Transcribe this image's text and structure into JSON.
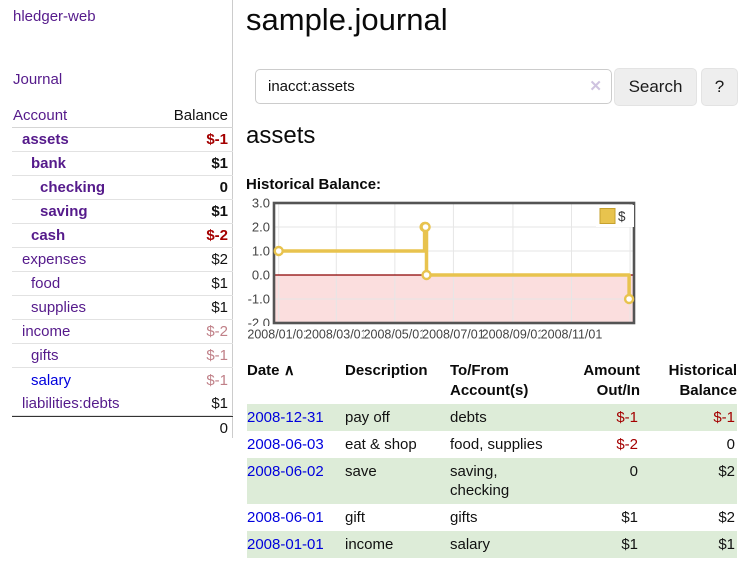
{
  "colors": {
    "link_purple": "#551a8b",
    "link_blue": "#0000dd",
    "negative_strong": "#a40000",
    "negative_muted": "#c08088",
    "row_green": "#ddecd8",
    "button_gray": "#eeeeee",
    "chart_line": "#e8c34e"
  },
  "sidebar": {
    "brand": "hledger-web",
    "nav": {
      "journal": "Journal"
    },
    "accounts": {
      "headers": {
        "account": "Account",
        "balance": "Balance"
      },
      "rows": [
        {
          "name": "assets",
          "indent": 1,
          "bold": true,
          "balance": "$-1",
          "neg": "strong"
        },
        {
          "name": "bank",
          "indent": 2,
          "bold": true,
          "balance": "$1",
          "neg": ""
        },
        {
          "name": "checking",
          "indent": 3,
          "bold": true,
          "balance": "0",
          "neg": ""
        },
        {
          "name": "saving",
          "indent": 3,
          "bold": true,
          "balance": "$1",
          "neg": ""
        },
        {
          "name": "cash",
          "indent": 2,
          "bold": true,
          "balance": "$-2",
          "neg": "strong"
        },
        {
          "name": "expenses",
          "indent": 1,
          "bold": false,
          "balance": "$2",
          "neg": ""
        },
        {
          "name": "food",
          "indent": 2,
          "bold": false,
          "balance": "$1",
          "neg": ""
        },
        {
          "name": "supplies",
          "indent": 2,
          "bold": false,
          "balance": "$1",
          "neg": ""
        },
        {
          "name": "income",
          "indent": 1,
          "bold": false,
          "balance": "$-2",
          "neg": "muted"
        },
        {
          "name": "gifts",
          "indent": 2,
          "bold": false,
          "balance": "$-1",
          "neg": "muted"
        },
        {
          "name": "salary",
          "indent": 2,
          "bold": false,
          "balance": "$-1",
          "neg": "muted",
          "blue": true
        },
        {
          "name": "liabilities:debts",
          "indent": 1,
          "bold": false,
          "balance": "$1",
          "neg": ""
        }
      ],
      "total": "0"
    }
  },
  "header": {
    "title": "sample.journal"
  },
  "search": {
    "value": "inacct:assets",
    "clear_icon": "✕",
    "button": "Search",
    "help_button": "?"
  },
  "main": {
    "account_heading": "assets",
    "chart_heading": "Historical Balance:"
  },
  "chart_data": {
    "type": "line",
    "step": true,
    "title": "Historical Balance",
    "series": [
      {
        "name": "$",
        "color": "#e8c34e",
        "points": [
          [
            "2008-01-01",
            1
          ],
          [
            "2008-06-01",
            2
          ],
          [
            "2008-06-02",
            2
          ],
          [
            "2008-06-03",
            0
          ],
          [
            "2008-12-31",
            -1
          ]
        ]
      }
    ],
    "ylim": [
      -2,
      3
    ],
    "yticks": [
      "3.0",
      "2.0",
      "1.0",
      "0.0",
      "-1.0",
      "-2.0"
    ],
    "xticks": [
      {
        "date": "2008-01-01",
        "label": "2008/01/01"
      },
      {
        "date": "2008-03-01",
        "label": "2008/03/01"
      },
      {
        "date": "2008-05-01",
        "label": "2008/05/01"
      },
      {
        "date": "2008-07-01",
        "label": "2008/07/01"
      },
      {
        "date": "2008-09-01",
        "label": "2008/09/01"
      },
      {
        "date": "2008-11-01",
        "label": "2008/11/01"
      },
      {
        "date": "2009-01-01",
        "label": ""
      }
    ],
    "legend": {
      "label": "$",
      "position": "top-right"
    },
    "grid": true,
    "negative_region_color": "#fbdede",
    "zero_line_color": "#8b0000"
  },
  "register": {
    "headers": {
      "date": "Date",
      "sort_indicator": "∧",
      "description": "Description",
      "account_line1": "To/From",
      "account_line2": "Account(s)",
      "amount_line1": "Amount",
      "amount_line2": "Out/In",
      "balance_line1": "Historical",
      "balance_line2": "Balance"
    },
    "rows": [
      {
        "date": "2008-12-31",
        "description": "pay off",
        "accounts": "debts",
        "amount": "$-1",
        "balance": "$-1"
      },
      {
        "date": "2008-06-03",
        "description": "eat & shop",
        "accounts": "food, supplies",
        "amount": "$-2",
        "balance": "0"
      },
      {
        "date": "2008-06-02",
        "description": "save",
        "accounts": "saving, checking",
        "amount": "0",
        "balance": "$2"
      },
      {
        "date": "2008-06-01",
        "description": "gift",
        "accounts": "gifts",
        "amount": "$1",
        "balance": "$2"
      },
      {
        "date": "2008-01-01",
        "description": "income",
        "accounts": "salary",
        "amount": "$1",
        "balance": "$1"
      }
    ]
  }
}
